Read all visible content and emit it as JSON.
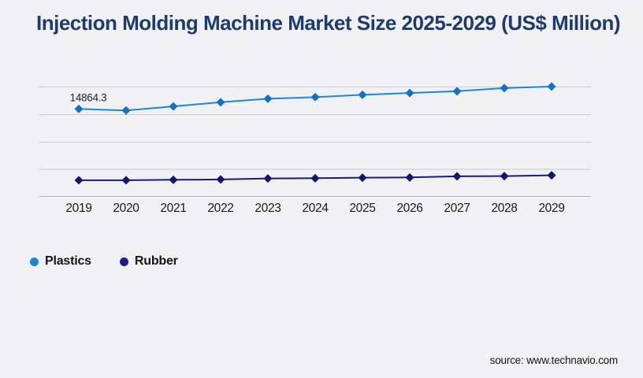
{
  "title": "Injection Molding Machine Market Size 2025-2029 (US$ Million)",
  "source_text": "source: www.technavio.com",
  "colors": {
    "background": "#f1f1f3",
    "title": "#1e3a6e",
    "gridline": "#cbcbcd",
    "axis_line": "#b4b4b6",
    "axis_text": "#191919",
    "annotation_text": "#222222",
    "plastics_line": "#1e86d8",
    "plastics_marker": "#1470c6",
    "rubber_line": "#1b1b7e",
    "rubber_marker": "#15156e"
  },
  "legend": {
    "items": [
      {
        "label": "Plastics",
        "color": "#1787d8"
      },
      {
        "label": "Rubber",
        "color": "#1c1c8c"
      }
    ]
  },
  "chart_data": {
    "type": "line",
    "title": "Injection Molding Machine Market Size 2025-2029 (US$ Million)",
    "x": [
      2019,
      2020,
      2021,
      2022,
      2023,
      2024,
      2025,
      2026,
      2027,
      2028,
      2029
    ],
    "xlabel": "",
    "ylabel": "",
    "ylim": [
      0,
      18600
    ],
    "y_axis_labels_visible": false,
    "grid": true,
    "legend_position": "bottom-left",
    "marker_shape": "diamond",
    "series": [
      {
        "name": "Plastics",
        "line_color": "#1e86d8",
        "marker_color": "#1470c6",
        "values": [
          14864.3,
          14600,
          15300,
          16000,
          16590,
          16860,
          17260,
          17570,
          17870,
          18400,
          18670
        ]
      },
      {
        "name": "Rubber",
        "line_color": "#1b1b7e",
        "marker_color": "#15156e",
        "values": [
          2760,
          2760,
          2830,
          2890,
          3060,
          3100,
          3190,
          3230,
          3420,
          3460,
          3590
        ]
      }
    ],
    "annotations": [
      {
        "series": "Plastics",
        "x": 2019,
        "text": "14864.3"
      }
    ]
  }
}
